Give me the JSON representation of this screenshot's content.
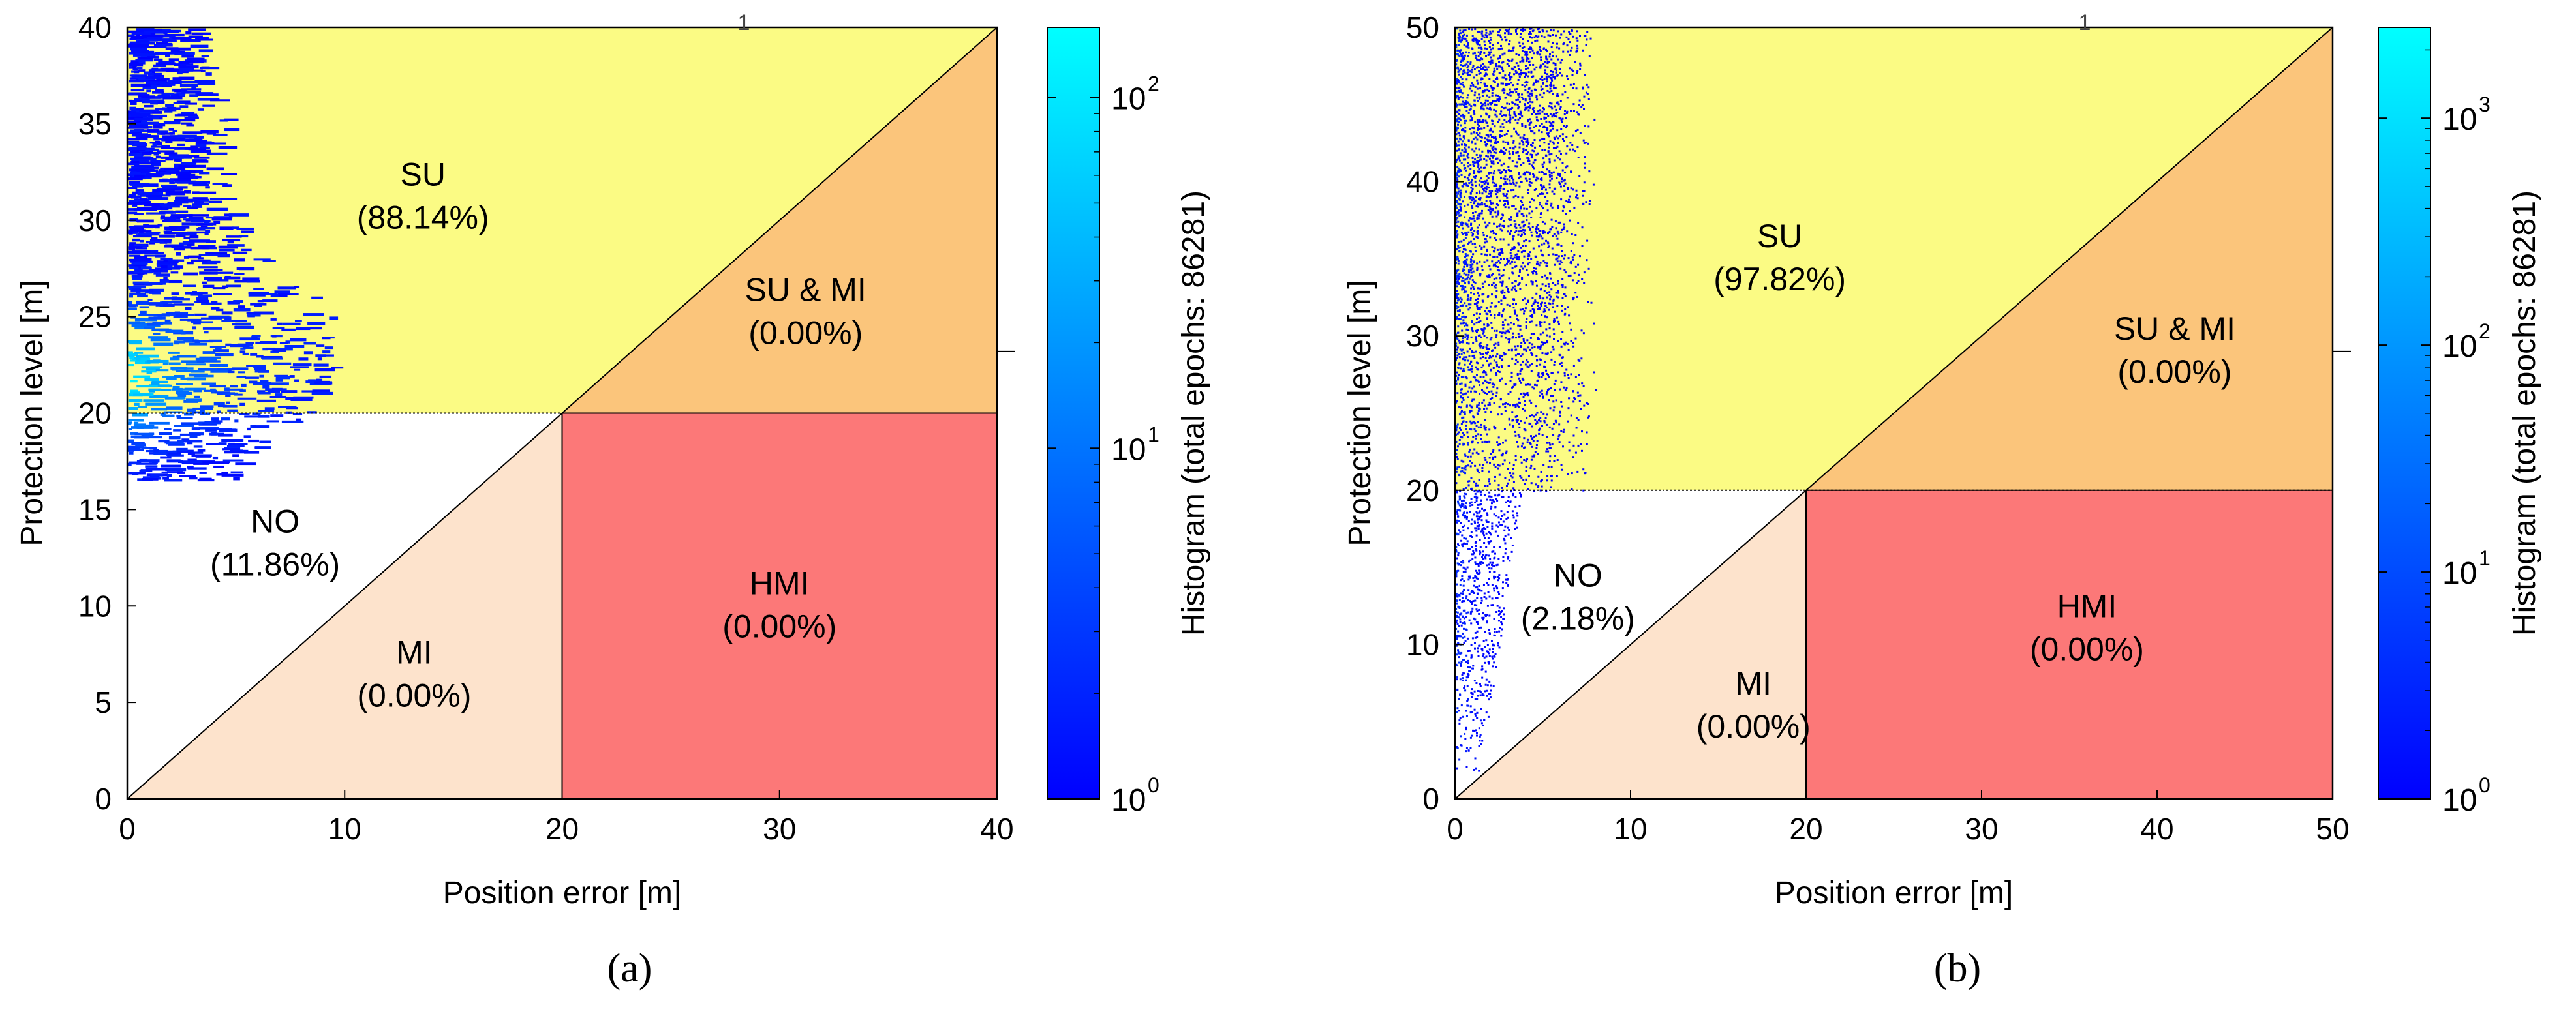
{
  "chart_data": [
    {
      "id": "a",
      "type": "heatmap",
      "panel_label": "(a)",
      "xlabel": "Position error [m]",
      "ylabel": "Protection level [m]",
      "xlim": [
        0,
        40
      ],
      "ylim": [
        0,
        40
      ],
      "xticks": [
        0,
        10,
        20,
        30,
        40
      ],
      "yticks": [
        0,
        5,
        10,
        15,
        20,
        25,
        30,
        35,
        40
      ],
      "alert_limit": 20,
      "regions": [
        {
          "key": "su",
          "name": "SU",
          "percent": "(88.14%)",
          "color": "#fbfb84"
        },
        {
          "key": "sumi",
          "name": "SU & MI",
          "percent": "(0.00%)",
          "color": "#fbc57b"
        },
        {
          "key": "no",
          "name": "NO",
          "percent": "(11.86%)",
          "color": "#ffffff"
        },
        {
          "key": "mi",
          "name": "MI",
          "percent": "(0.00%)",
          "color": "#fde3cc"
        },
        {
          "key": "hmi",
          "name": "HMI",
          "percent": "(0.00%)",
          "color": "#fc7878"
        }
      ],
      "colorbar": {
        "label": "Histogram (total epochs: 86281)",
        "scale": "log",
        "min_exponent": 0,
        "max_exponent": 2.2,
        "ticks": [
          {
            "base": "10",
            "exp": "0"
          },
          {
            "base": "10",
            "exp": "1"
          },
          {
            "base": "10",
            "exp": "2"
          }
        ],
        "colors": [
          "#0000ff",
          "#00ffff"
        ]
      },
      "histogram_extent": {
        "pe_max": 9.5,
        "pl_min": 16.5,
        "pl_max": 40
      },
      "stray_text": "1"
    },
    {
      "id": "b",
      "type": "heatmap",
      "panel_label": "(b)",
      "xlabel": "Position error [m]",
      "ylabel": "Protection level [m]",
      "xlim": [
        0,
        50
      ],
      "ylim": [
        0,
        50
      ],
      "xticks": [
        0,
        10,
        20,
        30,
        40,
        50
      ],
      "yticks": [
        0,
        10,
        20,
        30,
        40,
        50
      ],
      "alert_limit": 20,
      "regions": [
        {
          "key": "su",
          "name": "SU",
          "percent": "(97.82%)",
          "color": "#fbfb84"
        },
        {
          "key": "sumi",
          "name": "SU & MI",
          "percent": "(0.00%)",
          "color": "#fbc57b"
        },
        {
          "key": "no",
          "name": "NO",
          "percent": "(2.18%)",
          "color": "#ffffff"
        },
        {
          "key": "mi",
          "name": "MI",
          "percent": "(0.00%)",
          "color": "#fde3cc"
        },
        {
          "key": "hmi",
          "name": "HMI",
          "percent": "(0.00%)",
          "color": "#fc7878"
        }
      ],
      "colorbar": {
        "label": "Histogram (total epochs: 86281)",
        "scale": "log",
        "min_exponent": 0,
        "max_exponent": 3.4,
        "ticks": [
          {
            "base": "10",
            "exp": "0"
          },
          {
            "base": "10",
            "exp": "1"
          },
          {
            "base": "10",
            "exp": "2"
          },
          {
            "base": "10",
            "exp": "3"
          }
        ],
        "colors": [
          "#0000ff",
          "#00ffff"
        ]
      },
      "histogram_extent": {
        "pe_max": 9.5,
        "pl_min": 1.5,
        "pl_max": 50
      },
      "stray_text": "1"
    }
  ]
}
